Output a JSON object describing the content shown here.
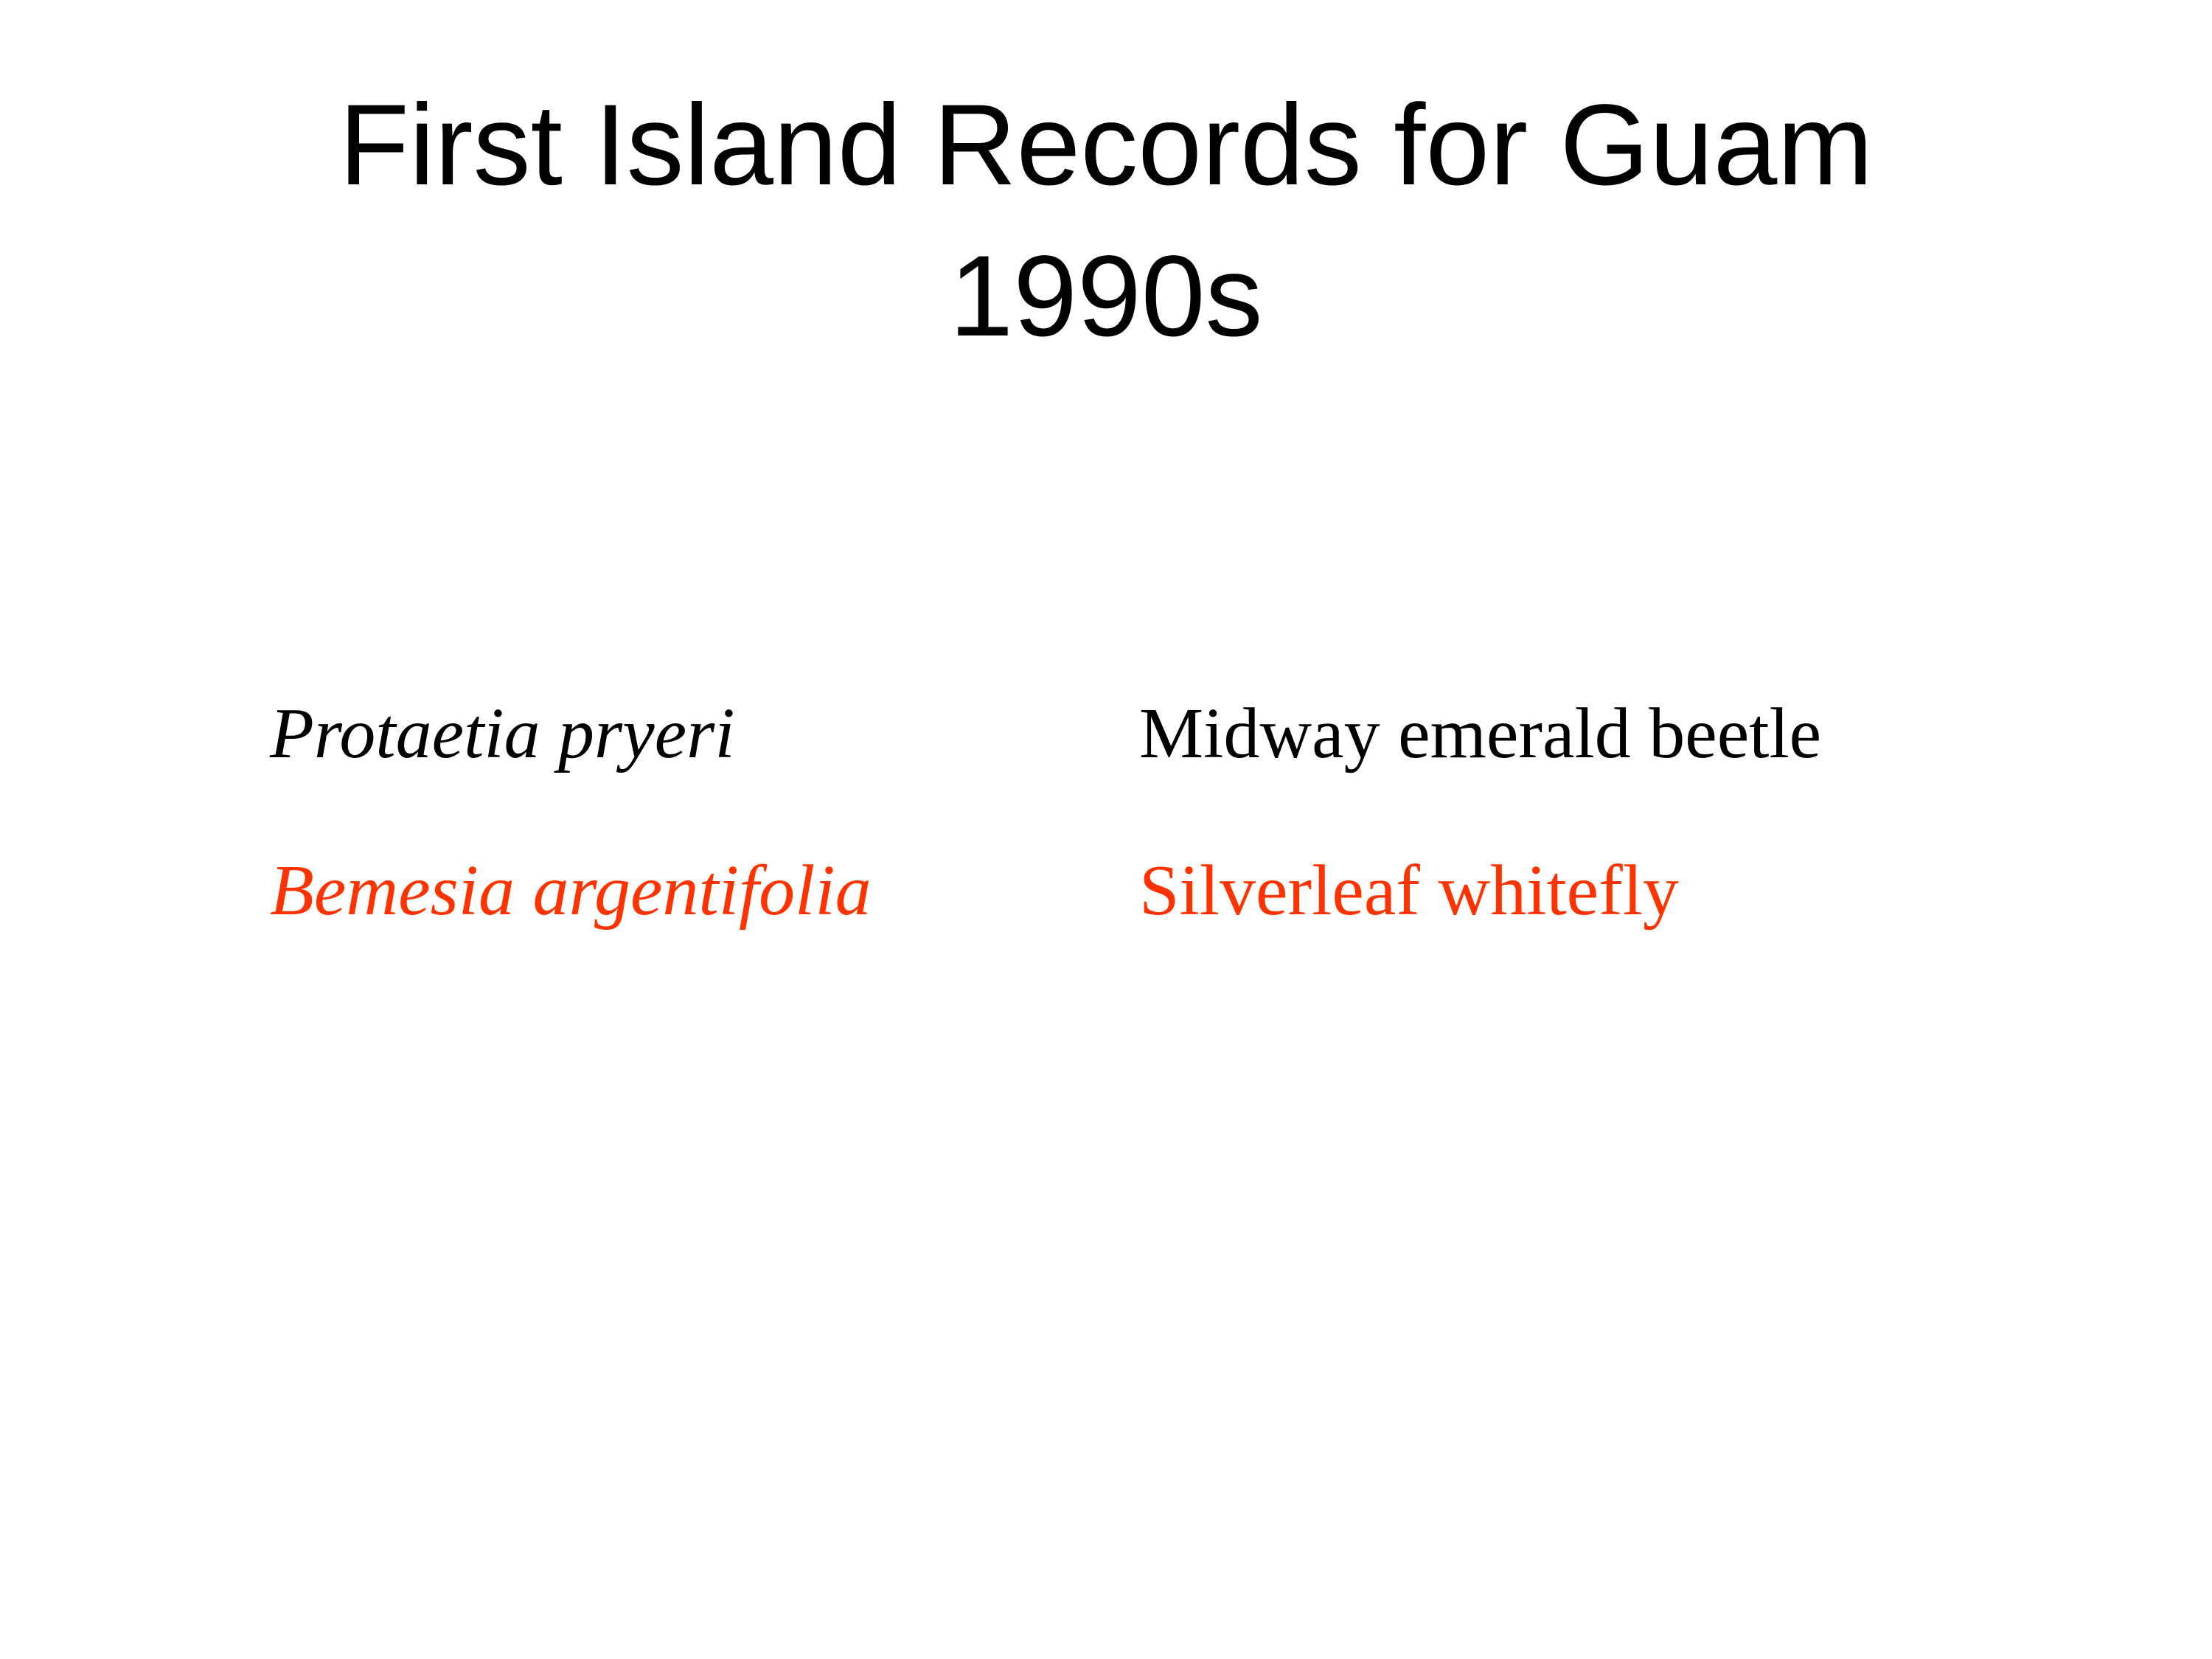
{
  "slide": {
    "title_line_1": "First Island Records for Guam",
    "title_line_2": "1990s",
    "records": [
      {
        "scientific_name": "Protaetia pryeri",
        "common_name": "Midway emerald beetle",
        "color": "#000000"
      },
      {
        "scientific_name": "Bemesia argentifolia",
        "common_name": "Silverleaf whitefly",
        "color": "#ff3300"
      }
    ]
  }
}
